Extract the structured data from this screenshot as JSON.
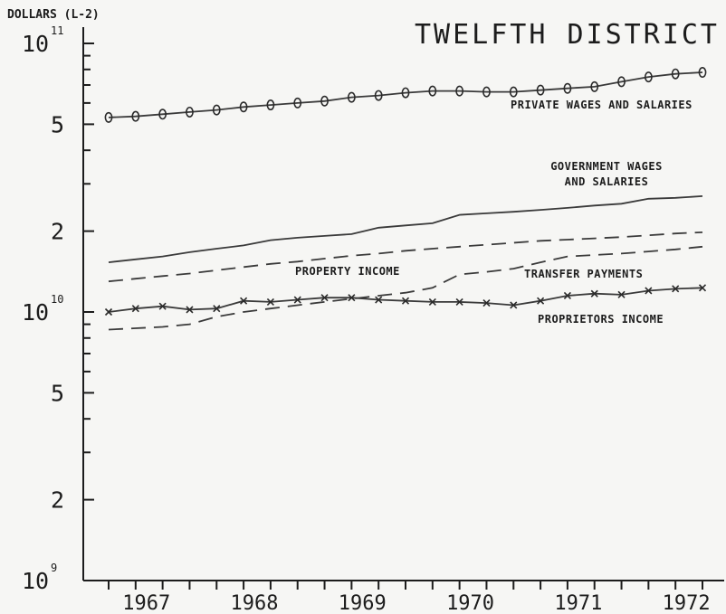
{
  "chart_data": {
    "type": "line",
    "title": "TWELFTH DISTRICT",
    "ylabel": "DOLLARS (L-2)",
    "yscale": "log",
    "ylim": [
      1000000000,
      100000000000
    ],
    "y_ticks": [
      {
        "value": 1000000000,
        "base": "10",
        "exp": "9"
      },
      {
        "value": 2000000000,
        "base": "2",
        "exp": ""
      },
      {
        "value": 5000000000,
        "base": "5",
        "exp": ""
      },
      {
        "value": 10000000000,
        "base": "10",
        "exp": "10"
      },
      {
        "value": 20000000000,
        "base": "2",
        "exp": ""
      },
      {
        "value": 50000000000,
        "base": "5",
        "exp": ""
      },
      {
        "value": 100000000000,
        "base": "10",
        "exp": "11"
      }
    ],
    "x_tick_labels": [
      "1967",
      "1968",
      "1969",
      "1970",
      "1971",
      "1972"
    ],
    "xlim": [
      1966.5,
      1972.75
    ],
    "x": [
      1966.75,
      1967.0,
      1967.25,
      1967.5,
      1967.75,
      1968.0,
      1968.25,
      1968.5,
      1968.75,
      1969.0,
      1969.25,
      1969.5,
      1969.75,
      1970.0,
      1970.25,
      1970.5,
      1970.75,
      1971.0,
      1971.25,
      1971.5,
      1971.75,
      1972.0,
      1972.25
    ],
    "series": [
      {
        "name": "PRIVATE WAGES AND SALARIES",
        "marker": "o",
        "style": "solid",
        "values": [
          53000000000,
          53500000000,
          54500000000,
          55500000000,
          56500000000,
          58000000000,
          59000000000,
          60000000000,
          61000000000,
          63000000000,
          64000000000,
          65500000000,
          66500000000,
          66500000000,
          66000000000,
          66000000000,
          67000000000,
          68000000000,
          69000000000,
          72000000000,
          75000000000,
          77000000000,
          78000000000
        ]
      },
      {
        "name": "GOVERNMENT WAGES AND SALARIES",
        "marker": "",
        "style": "solid",
        "values": [
          15300000000,
          15700000000,
          16100000000,
          16700000000,
          17200000000,
          17700000000,
          18500000000,
          18900000000,
          19200000000,
          19500000000,
          20600000000,
          21000000000,
          21400000000,
          23000000000,
          23300000000,
          23600000000,
          24000000000,
          24400000000,
          24900000000,
          25300000000,
          26400000000,
          26600000000,
          27000000000
        ]
      },
      {
        "name": "PROPERTY INCOME",
        "marker": "",
        "style": "dashed",
        "values": [
          13000000000,
          13300000000,
          13600000000,
          13900000000,
          14300000000,
          14700000000,
          15100000000,
          15400000000,
          15800000000,
          16200000000,
          16500000000,
          16900000000,
          17200000000,
          17500000000,
          17800000000,
          18100000000,
          18400000000,
          18600000000,
          18800000000,
          19000000000,
          19300000000,
          19600000000,
          19800000000
        ]
      },
      {
        "name": "TRANSFER PAYMENTS",
        "marker": "",
        "style": "dashed",
        "values": [
          8600000000,
          8700000000,
          8800000000,
          9000000000,
          9600000000,
          10000000000,
          10300000000,
          10600000000,
          10900000000,
          11200000000,
          11500000000,
          11800000000,
          12300000000,
          13800000000,
          14100000000,
          14500000000,
          15300000000,
          16100000000,
          16300000000,
          16500000000,
          16800000000,
          17100000000,
          17500000000
        ]
      },
      {
        "name": "PROPRIETORS INCOME",
        "marker": "x",
        "style": "solid",
        "values": [
          10000000000,
          10300000000,
          10500000000,
          10200000000,
          10300000000,
          11000000000,
          10900000000,
          11100000000,
          11300000000,
          11300000000,
          11100000000,
          11000000000,
          10900000000,
          10900000000,
          10800000000,
          10600000000,
          11000000000,
          11500000000,
          11700000000,
          11600000000,
          12000000000,
          12200000000,
          12300000000
        ]
      }
    ],
    "grid": false,
    "legend": "inline labels"
  }
}
